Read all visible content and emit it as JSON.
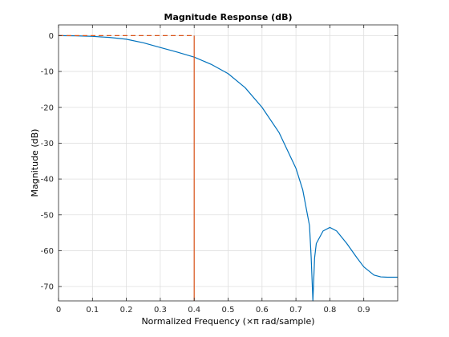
{
  "chart_data": {
    "type": "line",
    "title": "Magnitude Response (dB)",
    "xlabel": "Normalized Frequency (×π rad/sample)",
    "ylabel": "Magnitude (dB)",
    "xlim": [
      0,
      1
    ],
    "ylim": [
      -74,
      3
    ],
    "grid": true,
    "x_ticks": [
      0,
      0.1,
      0.2,
      0.3,
      0.4,
      0.5,
      0.6,
      0.7,
      0.8,
      0.9
    ],
    "x_tick_labels": [
      "0",
      "0.1",
      "0.2",
      "0.3",
      "0.4",
      "0.5",
      "0.6",
      "0.7",
      "0.8",
      "0.9"
    ],
    "y_ticks": [
      0,
      -10,
      -20,
      -30,
      -40,
      -50,
      -60,
      -70
    ],
    "y_tick_labels": [
      "0",
      "-10",
      "-20",
      "-30",
      "-40",
      "-50",
      "-60",
      "-70"
    ],
    "series": [
      {
        "color": "#0072bd",
        "style": "solid",
        "x": [
          0,
          0.05,
          0.1,
          0.15,
          0.2,
          0.25,
          0.3,
          0.35,
          0.4,
          0.45,
          0.5,
          0.55,
          0.6,
          0.65,
          0.7,
          0.72,
          0.74,
          0.745,
          0.75,
          0.755,
          0.76,
          0.78,
          0.8,
          0.82,
          0.85,
          0.88,
          0.9,
          0.93,
          0.95,
          0.97,
          1.0
        ],
        "y": [
          0,
          -0.05,
          -0.2,
          -0.5,
          -1.0,
          -2.0,
          -3.3,
          -4.6,
          -6.0,
          -8.0,
          -10.6,
          -14.5,
          -20.0,
          -27.0,
          -37.0,
          -43.0,
          -53.0,
          -62.0,
          -74.0,
          -62.0,
          -58.0,
          -54.5,
          -53.5,
          -54.5,
          -58.0,
          -62.0,
          -64.5,
          -66.8,
          -67.3,
          -67.4,
          -67.4
        ]
      },
      {
        "color": "#d95319",
        "style": "dashed",
        "x": [
          0,
          0.4
        ],
        "y": [
          0,
          0
        ]
      },
      {
        "color": "#d95319",
        "style": "solid",
        "x": [
          0.4,
          0.4
        ],
        "y": [
          0,
          -74
        ]
      }
    ]
  }
}
